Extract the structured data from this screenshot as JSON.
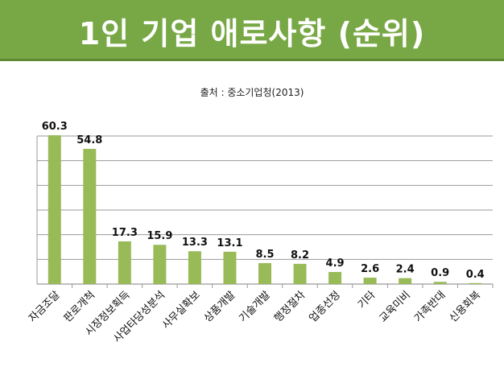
{
  "header": {
    "title": "1인 기업 애로사항 (순위)"
  },
  "source": "출처 : 중소기업청(2013)",
  "colors": {
    "banner": "#78a845",
    "bar": "#98bb58",
    "grid": "#9a9a9a"
  },
  "chart_data": {
    "type": "bar",
    "title": "",
    "xlabel": "",
    "ylabel": "",
    "categories": [
      "자금조달",
      "판로개척",
      "시장정보획득",
      "사업타당성분석",
      "사무실확보",
      "상품개발",
      "기술개발",
      "행정절차",
      "업종선정",
      "기타",
      "교육미비",
      "가족반대",
      "신용회복"
    ],
    "values": [
      60.3,
      54.8,
      17.3,
      15.9,
      13.3,
      13.1,
      8.5,
      8.2,
      4.9,
      2.6,
      2.4,
      0.9,
      0.4
    ],
    "value_labels": [
      "60.3",
      "54.8",
      "17.3",
      "15.9",
      "13.3",
      "13.1",
      "8.5",
      "8.2",
      "4.9",
      "2.6",
      "2.4",
      "0.9",
      "0.4"
    ],
    "ylim": [
      0,
      60
    ],
    "grid": true,
    "gridlines": [
      0,
      10,
      20,
      30,
      40,
      50,
      60
    ]
  }
}
